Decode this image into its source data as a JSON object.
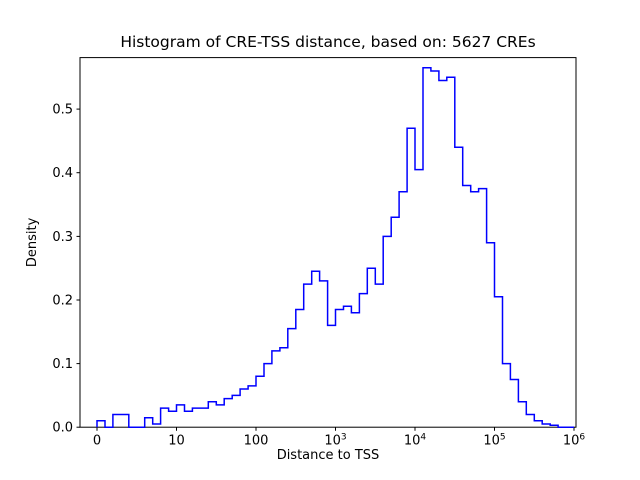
{
  "figure": {
    "title": "Histogram of CRE-TSS distance, based on: 5627 CREs",
    "xlabel": "Distance to TSS",
    "ylabel": "Density"
  },
  "chart_data": {
    "type": "bar",
    "subtype": "step-histogram",
    "title": "Histogram of CRE-TSS distance, based on: 5627 CREs",
    "xlabel": "Distance to TSS",
    "ylabel": "Density",
    "n_samples": 5627,
    "x_scale": "symlog",
    "line_color": "#0000ff",
    "axis_color": "#000000",
    "background_color": "#ffffff",
    "grid": false,
    "legend": false,
    "ylim": [
      0,
      0.581
    ],
    "x_axis_units_note": "u = log10 position on symlog axis; u=0 is the '0' tick, u=6 is the 10^6 tick",
    "x_units_range": [
      -0.214,
      6.025
    ],
    "x_ticks": [
      {
        "u": 0,
        "label": "0"
      },
      {
        "u": 1,
        "label": "10"
      },
      {
        "u": 2,
        "label": "100"
      },
      {
        "u": 3,
        "label": "10",
        "exp": "3"
      },
      {
        "u": 4,
        "label": "10",
        "exp": "4"
      },
      {
        "u": 5,
        "label": "10",
        "exp": "5"
      },
      {
        "u": 6,
        "label": "10",
        "exp": "6"
      }
    ],
    "y_ticks": [
      {
        "v": 0.0,
        "label": "0.0"
      },
      {
        "v": 0.1,
        "label": "0.1"
      },
      {
        "v": 0.2,
        "label": "0.2"
      },
      {
        "v": 0.3,
        "label": "0.3"
      },
      {
        "v": 0.4,
        "label": "0.4"
      },
      {
        "v": 0.5,
        "label": "0.5"
      }
    ],
    "bins_log10_start": 0.0,
    "bin_width_log10": 0.1,
    "densities": [
      0.01,
      0.0,
      0.02,
      0.02,
      0.0,
      0.0,
      0.015,
      0.005,
      0.03,
      0.025,
      0.035,
      0.025,
      0.03,
      0.03,
      0.04,
      0.035,
      0.045,
      0.05,
      0.06,
      0.065,
      0.08,
      0.1,
      0.12,
      0.125,
      0.155,
      0.185,
      0.225,
      0.245,
      0.23,
      0.16,
      0.185,
      0.19,
      0.18,
      0.21,
      0.25,
      0.225,
      0.3,
      0.33,
      0.37,
      0.47,
      0.405,
      0.565,
      0.56,
      0.545,
      0.55,
      0.44,
      0.38,
      0.37,
      0.375,
      0.29,
      0.205,
      0.1,
      0.075,
      0.04,
      0.02,
      0.01,
      0.005,
      0.003,
      0.0,
      0.0
    ]
  }
}
